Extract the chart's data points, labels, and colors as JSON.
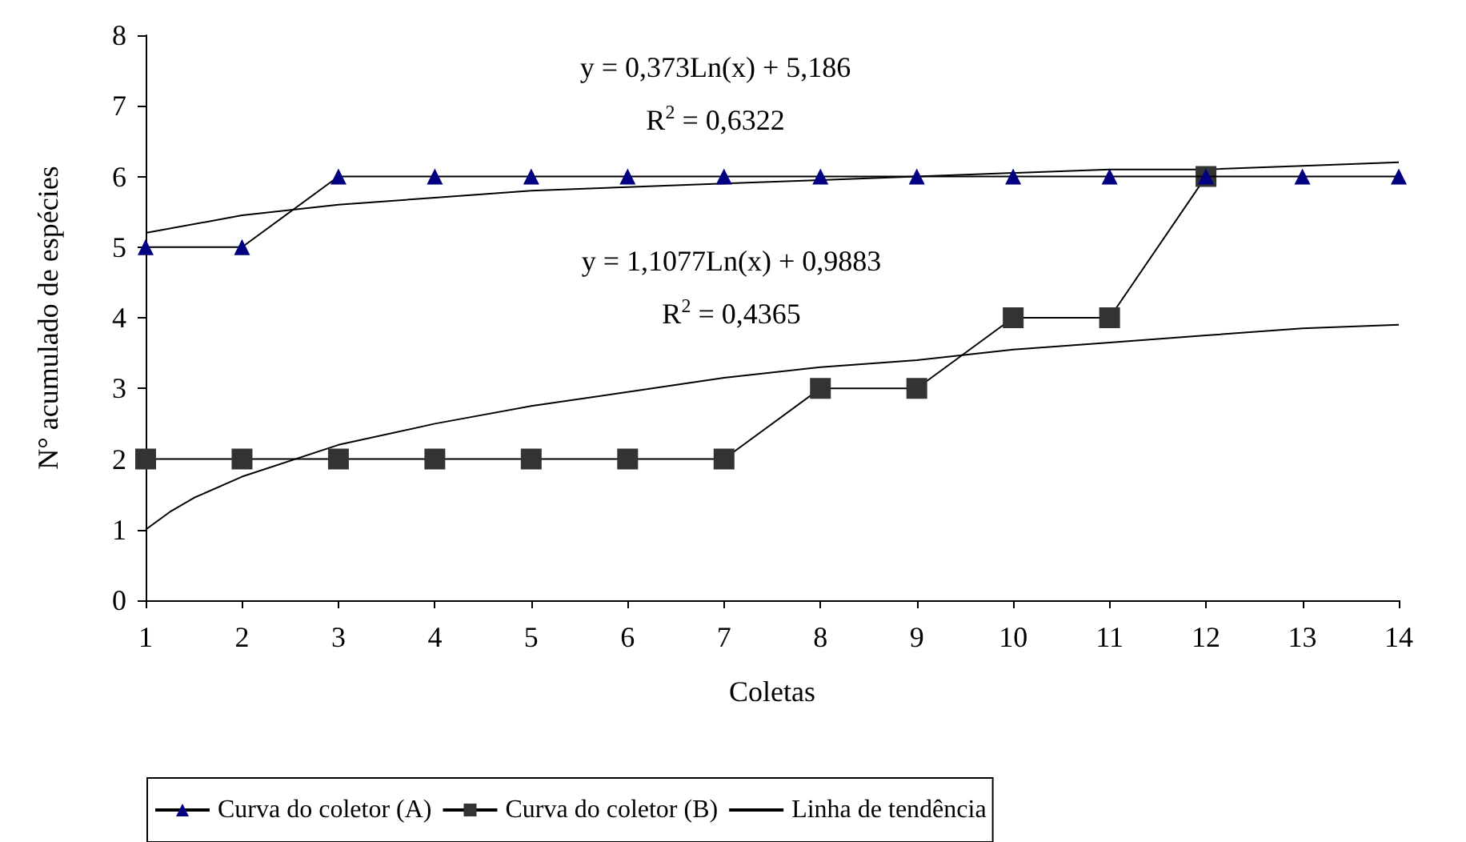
{
  "chart_data": {
    "type": "line",
    "xlabel": "Coletas",
    "ylabel": "N° acumulado de espécies",
    "x": [
      1,
      2,
      3,
      4,
      5,
      6,
      7,
      8,
      9,
      10,
      11,
      12,
      13,
      14
    ],
    "xlim": [
      1,
      14
    ],
    "xticks": [
      1,
      2,
      3,
      4,
      5,
      6,
      7,
      8,
      9,
      10,
      11,
      12,
      13,
      14
    ],
    "ylim": [
      0,
      8
    ],
    "yticks": [
      0,
      1,
      2,
      3,
      4,
      5,
      6,
      7,
      8
    ],
    "series": [
      {
        "name": "Curva do coletor (A)",
        "color": "#000080",
        "marker": "triangle",
        "values": [
          5,
          5,
          6,
          6,
          6,
          6,
          6,
          6,
          6,
          6,
          6,
          6,
          6,
          6
        ]
      },
      {
        "name": "Curva do coletor (B)",
        "color": "#333333",
        "marker": "square",
        "values": [
          2,
          2,
          2,
          2,
          2,
          2,
          2,
          3,
          3,
          4,
          4,
          6,
          null,
          null
        ]
      },
      {
        "name": "Linha de tendência",
        "color": "#000000",
        "marker": "none",
        "x": [
          1,
          2,
          3,
          4,
          5,
          6,
          7,
          8,
          9,
          10,
          11,
          12,
          13,
          14
        ],
        "values": [
          5.2,
          5.45,
          5.6,
          5.7,
          5.8,
          5.85,
          5.9,
          5.95,
          6.0,
          6.05,
          6.1,
          6.1,
          6.15,
          6.2
        ]
      },
      {
        "color": "#000000",
        "marker": "none",
        "x": [
          1,
          1.25,
          1.5,
          2,
          3,
          4,
          5,
          6,
          7,
          8,
          9,
          10,
          11,
          12,
          13,
          14
        ],
        "values": [
          1.0,
          1.25,
          1.45,
          1.75,
          2.2,
          2.5,
          2.75,
          2.95,
          3.15,
          3.3,
          3.4,
          3.55,
          3.65,
          3.75,
          3.85,
          3.9
        ]
      }
    ],
    "annotations": [
      "y = 0,373Ln(x) + 5,186",
      "R$^{2}$ = 0,6322",
      "y = 1,1077Ln(x) + 0,9883",
      "R$^{2}$ = 0,4365"
    ],
    "grid": false,
    "legend": "bottom"
  }
}
